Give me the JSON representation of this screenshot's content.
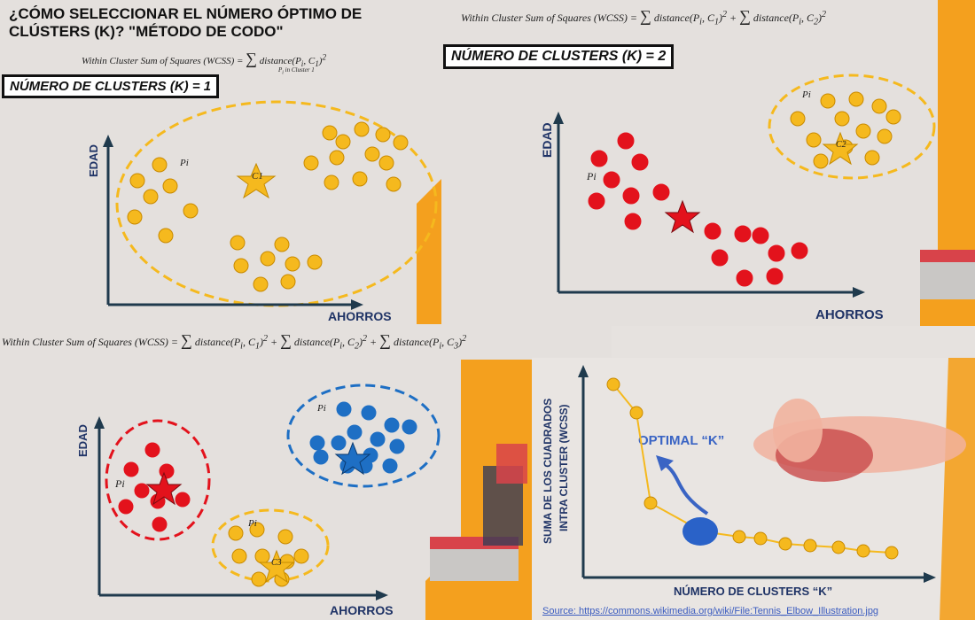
{
  "title": "¿CÓMO SELECCIONAR EL NÚMERO ÓPTIMO DE CLÚSTERS (K)? \"MÉTODO DE CODO\"",
  "formula_k1": "Within Cluster Sum of Squares (WCSS) = Σ P_i in Cluster 1 distance(P_i, C_1)²",
  "formula_k2": "Within Cluster Sum of Squares (WCSS) = Σ P_i in Cluster 1 distance(P_i, C_1)² + Σ P_i in Cluster 2 distance(P_i, C_2)²",
  "formula_k3": "Within Cluster Sum of Squares (WCSS) = Σ P_i in Cluster 1 distance(P_i, C_1)² + Σ P_i in Cluster 2 distance(P_i, C_2)² + Σ P_i in Cluster 3 distance(P_i, C_3)²",
  "k1_label": "NÚMERO DE CLUSTERS (K) = 1",
  "k2_label": "NÚMERO DE CLUSTERS (K) = 2",
  "y_axis": "EDAD",
  "x_axis": "AHORROS",
  "point_label": "Pi",
  "centroid_labels": [
    "C1",
    "C2",
    "C3"
  ],
  "elbow": {
    "y_axis_line1": "SUMA DE LOS CUADRADOS",
    "y_axis_line2": "INTRA CLUSTER (WCSS)",
    "x_axis": "NÚMERO DE CLUSTERS “K”",
    "optimal_label": "OPTIMAL “K”",
    "source": "Source: https://commons.wikimedia.org/wiki/File:Tennis_Elbow_Illustration.jpg"
  },
  "colors": {
    "yellow": "#f5b91e",
    "red": "#e3121c",
    "blue": "#1e6fc4",
    "orange_bg": "#f4a01e",
    "axis": "#1f3a4d"
  }
}
